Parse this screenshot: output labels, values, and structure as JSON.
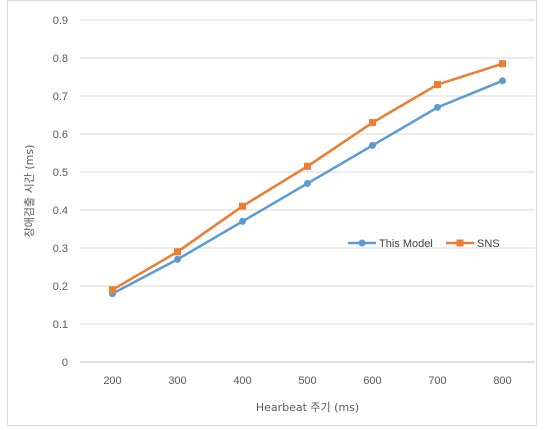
{
  "chart_data": {
    "type": "line",
    "title": "",
    "xlabel": "Hearbeat 주기 (ms)",
    "ylabel": "장애검출 시간 (ms)",
    "categories": [
      "200",
      "300",
      "400",
      "500",
      "600",
      "700",
      "800"
    ],
    "ylim": [
      0,
      0.9
    ],
    "yticks": [
      "0",
      "0.1",
      "0.2",
      "0.3",
      "0.4",
      "0.5",
      "0.6",
      "0.7",
      "0.8",
      "0.9"
    ],
    "grid": true,
    "legend_position": "right",
    "series": [
      {
        "name": "This Model",
        "color": "#5b9bd5",
        "marker": "circle",
        "values": [
          0.18,
          0.27,
          0.37,
          0.47,
          0.57,
          0.67,
          0.74
        ]
      },
      {
        "name": "SNS",
        "color": "#ed7d31",
        "marker": "square",
        "values": [
          0.19,
          0.29,
          0.41,
          0.515,
          0.63,
          0.73,
          0.785
        ]
      }
    ]
  }
}
